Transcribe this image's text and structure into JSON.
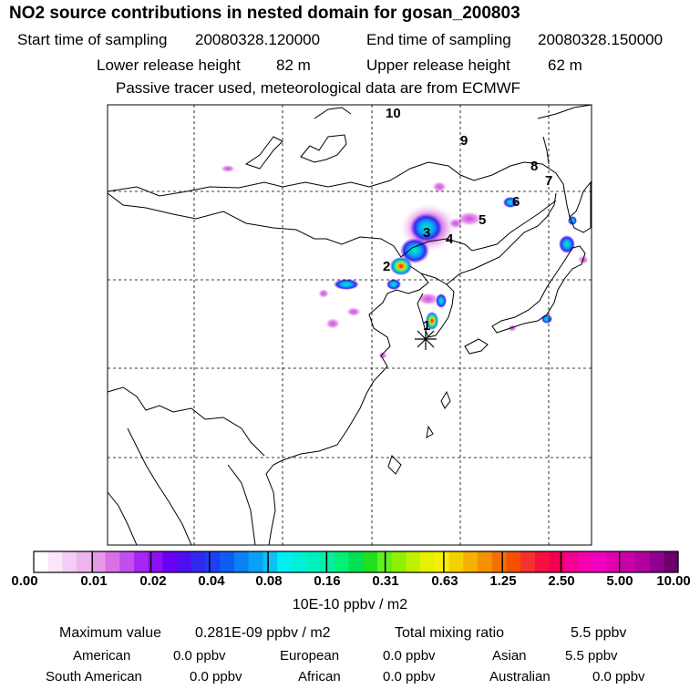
{
  "title": "NO2 source contributions in nested domain for gosan_200803",
  "header": {
    "start_label": "Start time of sampling",
    "start_value": "20080328.120000",
    "end_label": "End time of sampling",
    "end_value": "20080328.150000",
    "lower_label": "Lower release height",
    "lower_value": "82 m",
    "upper_label": "Upper release height",
    "upper_value": "62 m",
    "note": "Passive tracer used, meteorological data are from ECMWF"
  },
  "map": {
    "trajectory_markers": [
      "1",
      "2",
      "3",
      "4",
      "5",
      "6",
      "7",
      "8",
      "9",
      "10"
    ],
    "receptor_icon": "receptor-asterisk-icon"
  },
  "colorbar": {
    "tick_labels": [
      "0.00",
      "0.01",
      "0.02",
      "0.04",
      "0.08",
      "0.16",
      "0.31",
      "0.63",
      "1.25",
      "2.50",
      "5.00",
      "10.00"
    ],
    "colors": [
      "#ffffff",
      "#fbe6fb",
      "#f5ccf5",
      "#efb3ef",
      "#e699e6",
      "#d970e6",
      "#c44df0",
      "#a826f5",
      "#8c0ff5",
      "#6a00f5",
      "#4c10f0",
      "#3328f0",
      "#1c40f5",
      "#0f5cf5",
      "#0a80f5",
      "#0aa0f5",
      "#0ac0f5",
      "#00f0f0",
      "#00f0d8",
      "#00f0c0",
      "#00f0a8",
      "#00f078",
      "#00e050",
      "#20e020",
      "#60f020",
      "#90f000",
      "#c0f000",
      "#e8f000",
      "#f5f000",
      "#f5d000",
      "#f5b000",
      "#f59000",
      "#f57000",
      "#f55000",
      "#f53030",
      "#f51040",
      "#f50050",
      "#f50090",
      "#f500b0",
      "#f000c0",
      "#e000b0",
      "#c800a8",
      "#b000a0",
      "#900090",
      "#6a006a"
    ],
    "unit_label": "10E-10 ppbv / m2"
  },
  "stats": {
    "max_label": "Maximum value",
    "max_value": "0.281E-09 ppbv / m2",
    "total_label": "Total mixing ratio",
    "total_value": "5.5 ppbv"
  },
  "regions": [
    {
      "name": "American",
      "value": "0.0 ppbv"
    },
    {
      "name": "European",
      "value": "0.0 ppbv"
    },
    {
      "name": "Asian",
      "value": "5.5 ppbv"
    },
    {
      "name": "South American",
      "value": "0.0 ppbv"
    },
    {
      "name": "African",
      "value": "0.0 ppbv"
    },
    {
      "name": "Australian",
      "value": "0.0 ppbv"
    }
  ]
}
